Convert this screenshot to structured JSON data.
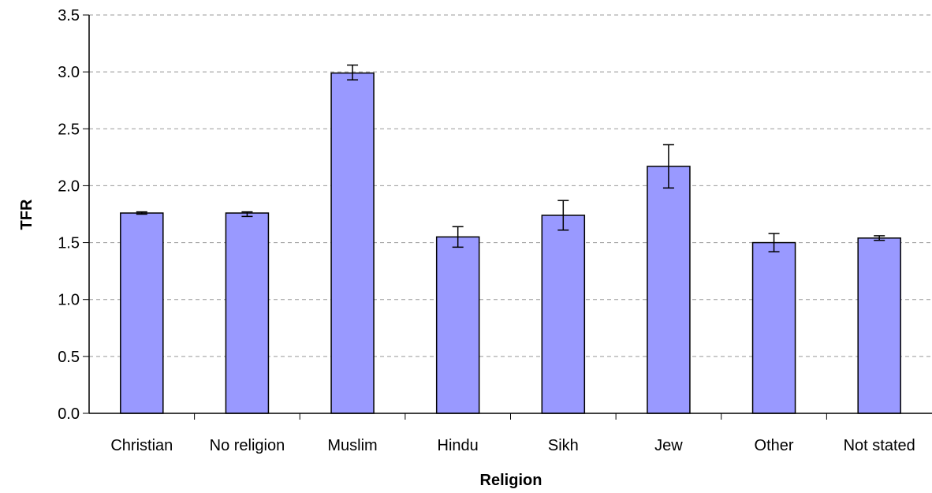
{
  "chart_data": {
    "type": "bar",
    "title": "",
    "xlabel": "Religion",
    "ylabel": "TFR",
    "categories": [
      "Christian",
      "No religion",
      "Muslim",
      "Hindu",
      "Sikh",
      "Jew",
      "Other",
      "Not stated"
    ],
    "values": [
      1.76,
      1.76,
      2.99,
      1.55,
      1.74,
      2.17,
      1.5,
      1.54
    ],
    "error_low": [
      1.75,
      1.73,
      2.93,
      1.46,
      1.61,
      1.98,
      1.42,
      1.52
    ],
    "error_high": [
      1.77,
      1.77,
      3.06,
      1.64,
      1.87,
      2.36,
      1.58,
      1.56
    ],
    "ylim": [
      0,
      3.5
    ],
    "yticks": [
      "0.0",
      "0.5",
      "1.0",
      "1.5",
      "2.0",
      "2.5",
      "3.0",
      "3.5"
    ],
    "grid": true,
    "legend": "none",
    "colors": {
      "bar_fill": "#9999ff",
      "bar_stroke": "#000000",
      "grid": "#999999"
    }
  }
}
